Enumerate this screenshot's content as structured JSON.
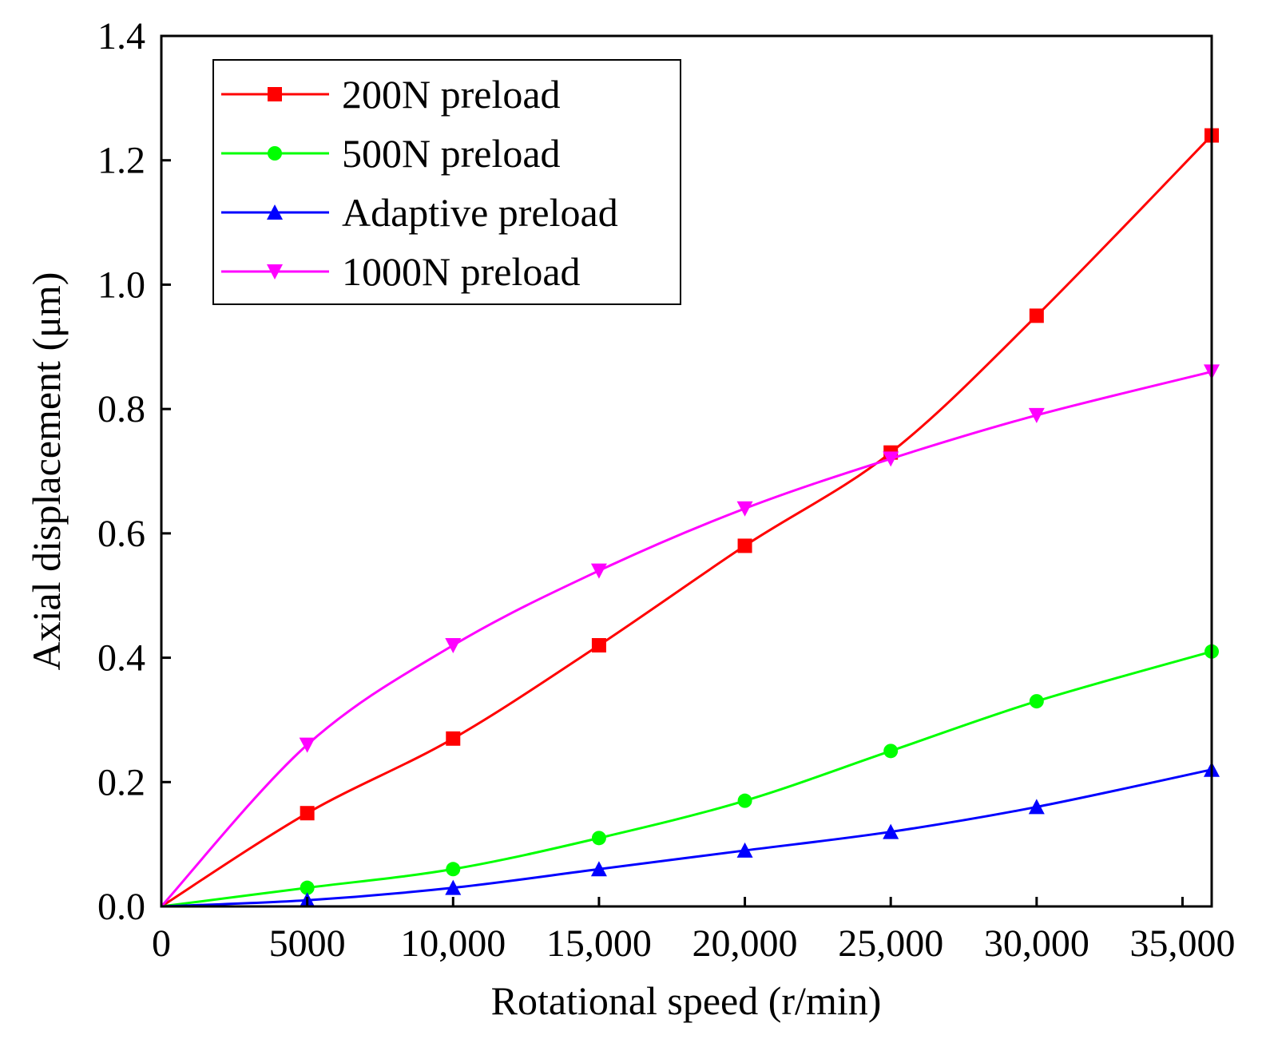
{
  "chart_data": {
    "type": "line",
    "title": "",
    "xlabel": "Rotational speed  (r/min)",
    "ylabel": "Axial displacement (μm)",
    "xlim": [
      0,
      36000
    ],
    "ylim": [
      0,
      1.4
    ],
    "x_ticks": [
      0,
      5000,
      10000,
      15000,
      20000,
      25000,
      30000,
      35000
    ],
    "x_tick_labels": [
      "0",
      "5000",
      "10,000",
      "15,000",
      "20,000",
      "25,000",
      "30,000",
      "35,000"
    ],
    "y_ticks": [
      0,
      0.2,
      0.4,
      0.6,
      0.8,
      1.0,
      1.2,
      1.4
    ],
    "y_tick_labels": [
      "0.0",
      "0.2",
      "0.4",
      "0.6",
      "0.8",
      "1.0",
      "1.2",
      "1.4"
    ],
    "grid": false,
    "legend_position": "top-left",
    "x": [
      0,
      5000,
      10000,
      15000,
      20000,
      25000,
      30000,
      36000
    ],
    "series": [
      {
        "name": "200N preload",
        "color": "#ff0000",
        "marker": "square",
        "values": [
          0,
          0.15,
          0.27,
          0.42,
          0.58,
          0.73,
          0.95,
          1.24
        ]
      },
      {
        "name": "500N preload",
        "color": "#00ff00",
        "marker": "circle",
        "values": [
          0,
          0.03,
          0.06,
          0.11,
          0.17,
          0.25,
          0.33,
          0.41
        ]
      },
      {
        "name": "Adaptive preload",
        "color": "#0000ff",
        "marker": "triangle-up",
        "values": [
          0,
          0.01,
          0.03,
          0.06,
          0.09,
          0.12,
          0.16,
          0.22
        ]
      },
      {
        "name": "1000N preload",
        "color": "#ff00ff",
        "marker": "triangle-down",
        "values": [
          0,
          0.26,
          0.42,
          0.54,
          0.64,
          0.72,
          0.79,
          0.86
        ]
      }
    ]
  }
}
